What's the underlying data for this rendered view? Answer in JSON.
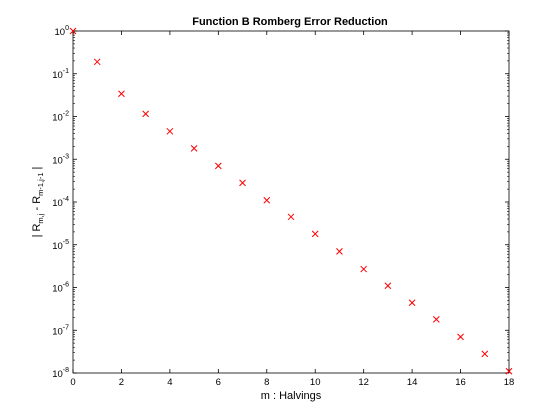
{
  "chart_data": {
    "type": "scatter",
    "title": "Function B Romberg Error Reduction",
    "xlabel": "m : Halvings",
    "ylabel": {
      "prefix": "| R",
      "sub1": "m,j",
      "mid": " - R",
      "sub2": "m-1,j-1",
      "suffix": " |"
    },
    "xlim": [
      0,
      18
    ],
    "ylim": [
      1e-08,
      1
    ],
    "yscale": "log",
    "grid": false,
    "xticks": [
      0,
      2,
      4,
      6,
      8,
      10,
      12,
      14,
      16,
      18
    ],
    "yticks": [
      {
        "base": "10",
        "exp": "0",
        "value": 1
      },
      {
        "base": "10",
        "exp": "-1",
        "value": 0.1
      },
      {
        "base": "10",
        "exp": "-2",
        "value": 0.01
      },
      {
        "base": "10",
        "exp": "-3",
        "value": 0.001
      },
      {
        "base": "10",
        "exp": "-4",
        "value": 0.0001
      },
      {
        "base": "10",
        "exp": "-5",
        "value": 1e-05
      },
      {
        "base": "10",
        "exp": "-6",
        "value": 1e-06
      },
      {
        "base": "10",
        "exp": "-7",
        "value": 1e-07
      },
      {
        "base": "10",
        "exp": "-8",
        "value": 1e-08
      }
    ],
    "marker": "x",
    "marker_color": "#ff0000",
    "x": [
      0,
      1,
      2,
      3,
      4,
      5,
      6,
      7,
      8,
      9,
      10,
      11,
      12,
      13,
      14,
      15,
      16,
      17,
      18
    ],
    "y": [
      1.0,
      0.19,
      0.034,
      0.0115,
      0.0045,
      0.0018,
      0.0007,
      0.00028,
      0.00011,
      4.5e-05,
      1.8e-05,
      7e-06,
      2.7e-06,
      1.1e-06,
      4.4e-07,
      1.8e-07,
      7e-08,
      2.8e-08,
      1.1e-08
    ]
  }
}
